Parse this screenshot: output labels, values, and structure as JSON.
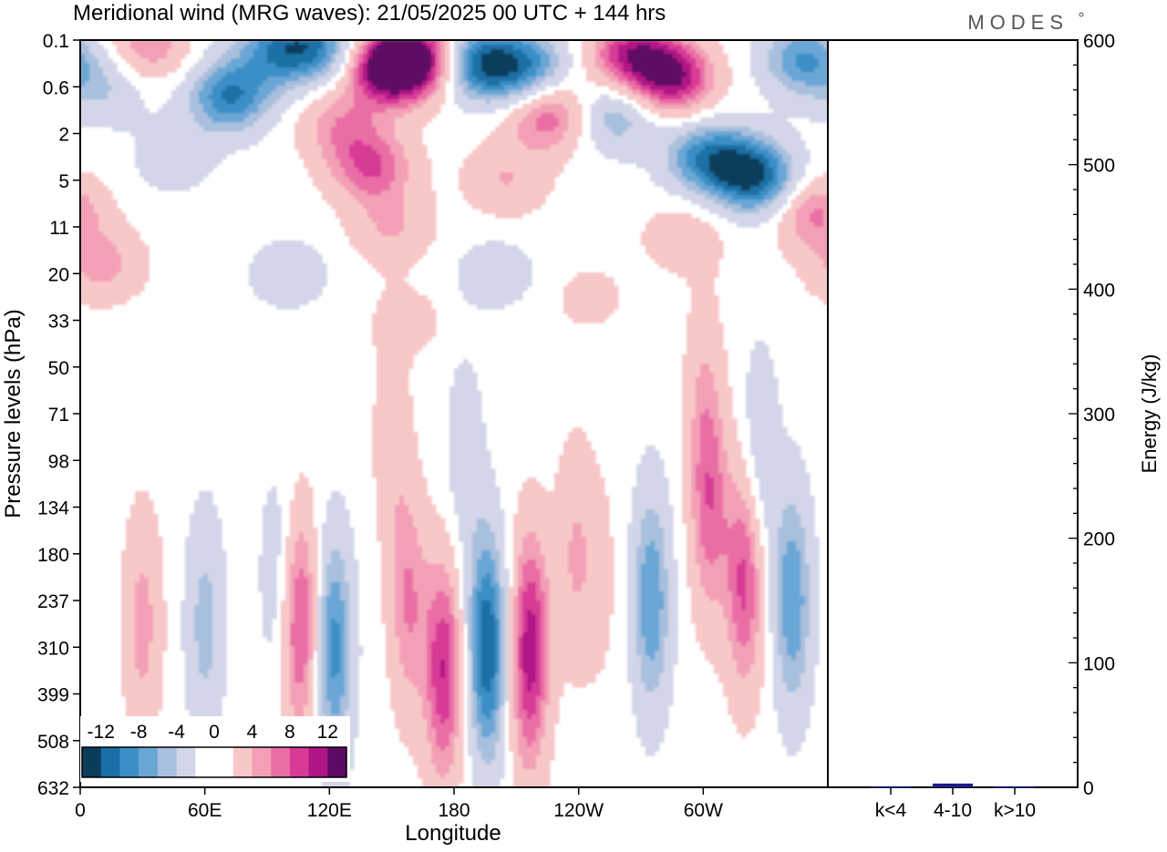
{
  "title": "Meridional wind (MRG waves):  21/05/2025  00 UTC  + 144 hrs",
  "logo": "MODES",
  "colors": {
    "neg": [
      "#0b3c5c",
      "#1a6fa6",
      "#3a8fc6",
      "#6aa6d6",
      "#a8bfdd",
      "#d2d6e8"
    ],
    "zero": "#ffffff",
    "pos": [
      "#f8c8c8",
      "#f3a0b6",
      "#ea6ea5",
      "#d83a96",
      "#b01586",
      "#5e0a64"
    ],
    "bar": "#1c1c8a"
  },
  "chart_data": [
    {
      "type": "heatmap",
      "title": "Meridional wind (MRG waves)",
      "xlabel": "Longitude",
      "ylabel": "Pressure levels (hPa)",
      "x_ticks": [
        "0",
        "60E",
        "120E",
        "180",
        "120W",
        "60W"
      ],
      "x_tick_values": [
        0,
        60,
        120,
        180,
        240,
        300
      ],
      "xlim": [
        0,
        360
      ],
      "y_ticks": [
        "0.1",
        "0.6",
        "2",
        "5",
        "11",
        "20",
        "33",
        "50",
        "71",
        "98",
        "134",
        "180",
        "237",
        "310",
        "399",
        "508",
        "632"
      ],
      "colorbar_labels": [
        "-12",
        "-8",
        "-4",
        "0",
        "4",
        "8",
        "12"
      ],
      "colorbar_levels": [
        -12,
        -10,
        -8,
        -6,
        -4,
        -2,
        2,
        4,
        6,
        8,
        10,
        12
      ],
      "blobs": [
        {
          "lon": 12,
          "lev": 1,
          "v": -4
        },
        {
          "lon": 32,
          "lev": 0.1,
          "v": 6
        },
        {
          "lon": 45,
          "lev": 2.5,
          "v": -3
        },
        {
          "lon": 72,
          "lev": 1.2,
          "v": -10
        },
        {
          "lon": 95,
          "lev": 0.2,
          "v": -8
        },
        {
          "lon": 115,
          "lev": 0.15,
          "v": -8
        },
        {
          "lon": 125,
          "lev": 1.8,
          "v": 5
        },
        {
          "lon": 148,
          "lev": 0.6,
          "v": 13
        },
        {
          "lon": 162,
          "lev": 0.4,
          "v": 12
        },
        {
          "lon": 140,
          "lev": 2.7,
          "v": 8
        },
        {
          "lon": 150,
          "lev": 4.0,
          "v": 4
        },
        {
          "lon": 192,
          "lev": 0.5,
          "v": -11
        },
        {
          "lon": 215,
          "lev": 0.6,
          "v": -9
        },
        {
          "lon": 225,
          "lev": 1.6,
          "v": 8
        },
        {
          "lon": 205,
          "lev": 3.0,
          "v": 4
        },
        {
          "lon": 265,
          "lev": 0.3,
          "v": 10
        },
        {
          "lon": 285,
          "lev": 0.8,
          "v": 12
        },
        {
          "lon": 258,
          "lev": 1.6,
          "v": -6
        },
        {
          "lon": 300,
          "lev": 2.5,
          "v": -8
        },
        {
          "lon": 320,
          "lev": 2.8,
          "v": -10
        },
        {
          "lon": 348,
          "lev": 0.4,
          "v": -8
        },
        {
          "lon": 335,
          "lev": 3.2,
          "v": -6
        },
        {
          "lon": 350,
          "lev": 3.6,
          "v": 8
        },
        {
          "lon": 10,
          "lev": 4.8,
          "v": 5
        },
        {
          "lon": 290,
          "lev": 4.2,
          "v": 3
        },
        {
          "lon": 200,
          "lev": 5.0,
          "v": -3
        },
        {
          "lon": 100,
          "lev": 5.0,
          "v": -3
        },
        {
          "lon": 245,
          "lev": 5.5,
          "v": 2
        },
        {
          "lon": 160,
          "lev": 6.0,
          "v": 2
        },
        {
          "lon": 30,
          "lev": 12.5,
          "v": 5
        },
        {
          "lon": 60,
          "lev": 12.5,
          "v": -5
        },
        {
          "lon": 95,
          "lev": 11.5,
          "v": -3
        },
        {
          "lon": 106,
          "lev": 12.5,
          "v": 9
        },
        {
          "lon": 122,
          "lev": 13.0,
          "v": -9
        },
        {
          "lon": 158,
          "lev": 12.0,
          "v": 6
        },
        {
          "lon": 175,
          "lev": 13.5,
          "v": 10
        },
        {
          "lon": 196,
          "lev": 13.0,
          "v": -12
        },
        {
          "lon": 217,
          "lev": 12.8,
          "v": 9
        },
        {
          "lon": 238,
          "lev": 11.0,
          "v": 4
        },
        {
          "lon": 250,
          "lev": 11.5,
          "v": 2
        },
        {
          "lon": 275,
          "lev": 12.0,
          "v": -8
        },
        {
          "lon": 303,
          "lev": 10.0,
          "v": 7
        },
        {
          "lon": 320,
          "lev": 11.5,
          "v": 9
        },
        {
          "lon": 343,
          "lev": 12.0,
          "v": -8
        },
        {
          "lon": 300,
          "lev": 7.5,
          "v": 3
        },
        {
          "lon": 327,
          "lev": 9.0,
          "v": -4
        },
        {
          "lon": 150,
          "lev": 8.5,
          "v": 3
        },
        {
          "lon": 185,
          "lev": 9.0,
          "v": -3
        },
        {
          "lon": 215,
          "lev": 14.0,
          "v": 3
        }
      ]
    },
    {
      "type": "bar",
      "categories": [
        "k<4",
        "4-10",
        "k>10"
      ],
      "values": [
        0.5,
        3,
        0.5
      ],
      "ylabel": "Energy (J/kg)",
      "ylim": [
        0,
        600
      ],
      "y_ticks": [
        "0",
        "100",
        "200",
        "300",
        "400",
        "500",
        "600"
      ],
      "y_tick_values": [
        0,
        100,
        200,
        300,
        400,
        500,
        600
      ]
    }
  ]
}
